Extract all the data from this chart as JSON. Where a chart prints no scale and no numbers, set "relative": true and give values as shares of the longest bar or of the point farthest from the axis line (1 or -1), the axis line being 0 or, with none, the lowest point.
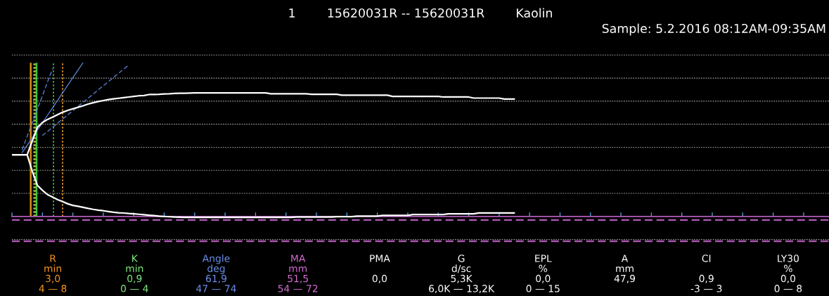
{
  "chart_data": [
    {
      "type": "line",
      "title": "1        15620031R -- 15620031R        Kaolin",
      "subtitle": "Sample: 5.2.2016 08:12AM-09:35AM",
      "relative": true,
      "grid": "y",
      "tick_labels": false,
      "categories": [
        null,
        null,
        null,
        null,
        null,
        null,
        null,
        null,
        null,
        null,
        null,
        null,
        null,
        null,
        null,
        null,
        null,
        null,
        null,
        null,
        null,
        null,
        null,
        null,
        null,
        null,
        null,
        null,
        null,
        null,
        null,
        null,
        null,
        null,
        null,
        null,
        null,
        null,
        null,
        null,
        null,
        null,
        null,
        null,
        null,
        null,
        null,
        null,
        null,
        null,
        null,
        null,
        null,
        null,
        null,
        null,
        null,
        null,
        null,
        null,
        null,
        null,
        null,
        null,
        null,
        null,
        null,
        null,
        null,
        null,
        null,
        null,
        null,
        null,
        null,
        null,
        null,
        null,
        null,
        null,
        null,
        null,
        null,
        null,
        null,
        null,
        null,
        null,
        null,
        null,
        null,
        null,
        null,
        null,
        null,
        null,
        null,
        null,
        null,
        null,
        null,
        null,
        null,
        null,
        null,
        null,
        null,
        null,
        null,
        null,
        null,
        null,
        null,
        null,
        null,
        null,
        null,
        null,
        null,
        null,
        null,
        null,
        null,
        null,
        null,
        null,
        null,
        null,
        null,
        null,
        null,
        null,
        null,
        null,
        null,
        null,
        null,
        null,
        null,
        null,
        null,
        null,
        null,
        null,
        null,
        null,
        null,
        null,
        null,
        null,
        null,
        null,
        null,
        null,
        null,
        null,
        null,
        null,
        null,
        null,
        null,
        null
      ],
      "series": [
        {
          "color": "#ffffff",
          "line_style": "solid",
          "values": [
            0.401,
            0.401,
            0.401,
            0.401,
            0.49,
            0.579,
            0.611,
            0.631,
            0.647,
            0.662,
            0.678,
            0.69,
            0.7,
            0.71,
            0.72,
            0.731,
            0.74,
            0.748,
            0.754,
            0.76,
            0.765,
            0.769,
            0.773,
            0.777,
            0.781,
            0.785,
            0.787,
            0.793,
            0.794,
            0.795,
            0.797,
            0.798,
            0.8,
            0.801,
            0.802,
            0.803,
            0.804,
            0.804,
            0.804,
            0.804,
            0.804,
            0.804,
            0.804,
            0.804,
            0.804,
            0.804,
            0.804,
            0.804,
            0.804,
            0.804,
            0.804,
            0.798,
            0.798,
            0.798,
            0.798,
            0.798,
            0.798,
            0.798,
            0.798,
            0.795,
            0.795,
            0.795,
            0.795,
            0.795,
            0.795,
            0.789,
            0.789,
            0.789,
            0.789,
            0.789,
            0.789,
            0.789,
            0.789,
            0.789,
            0.789,
            0.781,
            0.781,
            0.781,
            0.781,
            0.781,
            0.781,
            0.781,
            0.781,
            0.781,
            0.781,
            0.777,
            0.777,
            0.777,
            0.777,
            0.777,
            0.777,
            0.77,
            0.77,
            0.77,
            0.77,
            0.77,
            0.77,
            0.764,
            0.764,
            0.764,
            null,
            null,
            null,
            null,
            null,
            null,
            null,
            null,
            null,
            null,
            null,
            null,
            null,
            null,
            null,
            null,
            null,
            null,
            null,
            null,
            null,
            null,
            null,
            null,
            null,
            null,
            null,
            null,
            null,
            null,
            null,
            null,
            null,
            null,
            null,
            null,
            null,
            null,
            null,
            null,
            null,
            null,
            null,
            null,
            null,
            null,
            null,
            null,
            null,
            null,
            null,
            null,
            null,
            null,
            null,
            null,
            null,
            null,
            null,
            null,
            null,
            null
          ]
        },
        {
          "color": "#ffffff",
          "line_style": "solid",
          "values": [
            0.401,
            0.401,
            0.401,
            0.401,
            0.295,
            0.203,
            0.17,
            0.142,
            0.126,
            0.109,
            0.096,
            0.082,
            0.072,
            0.066,
            0.059,
            0.052,
            0.046,
            0.041,
            0.037,
            0.032,
            0.027,
            0.024,
            0.022,
            0.019,
            0.017,
            0.014,
            0.011,
            0.008,
            0.005,
            0.002,
            0.0,
            -0.002,
            -0.004,
            -0.005,
            -0.006,
            -0.006,
            -0.006,
            -0.006,
            -0.006,
            -0.006,
            -0.006,
            -0.006,
            -0.006,
            -0.006,
            -0.006,
            -0.006,
            -0.006,
            -0.006,
            -0.006,
            -0.006,
            -0.006,
            -0.006,
            -0.006,
            -0.006,
            -0.006,
            -0.006,
            -0.004,
            -0.004,
            -0.004,
            -0.004,
            -0.004,
            -0.004,
            -0.004,
            -0.004,
            -0.001,
            -0.001,
            -0.001,
            -0.001,
            0.002,
            0.002,
            0.002,
            0.002,
            0.002,
            0.007,
            0.007,
            0.007,
            0.007,
            0.007,
            0.007,
            0.012,
            0.012,
            0.012,
            0.012,
            0.012,
            0.012,
            0.012,
            0.017,
            0.017,
            0.017,
            0.017,
            0.017,
            0.017,
            0.023,
            0.023,
            0.023,
            0.023,
            0.023,
            0.023,
            0.023,
            0.023,
            null,
            null,
            null,
            null,
            null,
            null,
            null,
            null,
            null,
            null,
            null,
            null,
            null,
            null,
            null,
            null,
            null,
            null,
            null,
            null,
            null,
            null,
            null,
            null,
            null,
            null,
            null,
            null,
            null,
            null,
            null,
            null,
            null,
            null,
            null,
            null,
            null,
            null,
            null,
            null,
            null,
            null,
            null,
            null,
            null,
            null,
            null,
            null,
            null,
            null,
            null,
            null,
            null,
            null,
            null,
            null,
            null,
            null,
            null,
            null,
            null,
            null
          ]
        },
        {
          "color": "#5f86d8",
          "line_style": "dashed",
          "values": [
            null,
            null,
            0.433,
            0.522,
            0.609,
            0.698,
            0.785,
            0.874,
            0.961,
            null,
            null,
            null,
            null,
            null,
            null,
            null,
            null,
            null,
            null,
            null,
            null,
            null,
            null,
            null,
            null,
            null,
            null,
            null,
            null,
            null,
            null,
            null,
            null,
            null,
            null,
            null,
            null,
            null,
            null,
            null,
            null,
            null,
            null,
            null,
            null,
            null,
            null,
            null,
            null,
            null,
            null,
            null,
            null,
            null,
            null,
            null,
            null,
            null,
            null,
            null,
            null,
            null,
            null,
            null,
            null,
            null,
            null,
            null,
            null,
            null,
            null,
            null,
            null,
            null,
            null,
            null,
            null,
            null,
            null,
            null,
            null,
            null,
            null,
            null,
            null,
            null,
            null,
            null,
            null,
            null,
            null,
            null,
            null,
            null,
            null,
            null,
            null,
            null,
            null,
            null,
            null,
            null,
            null,
            null,
            null,
            null,
            null,
            null,
            null,
            null,
            null,
            null,
            null,
            null,
            null,
            null,
            null,
            null,
            null,
            null,
            null,
            null,
            null,
            null,
            null,
            null,
            null,
            null,
            null,
            null,
            null,
            null,
            null,
            null,
            null,
            null,
            null,
            null,
            null,
            null,
            null,
            null,
            null,
            null,
            null,
            null,
            null,
            null,
            null,
            null,
            null,
            null,
            null,
            null,
            null,
            null,
            null,
            null,
            null,
            null,
            null,
            null
          ]
        },
        {
          "color": "#5f86d8",
          "line_style": "solid",
          "values": [
            null,
            null,
            0.415,
            0.463,
            0.512,
            0.561,
            0.609,
            0.658,
            0.707,
            0.756,
            0.805,
            0.854,
            0.903,
            0.951,
            1.0,
            null,
            null,
            null,
            null,
            null,
            null,
            null,
            null,
            null,
            null,
            null,
            null,
            null,
            null,
            null,
            null,
            null,
            null,
            null,
            null,
            null,
            null,
            null,
            null,
            null,
            null,
            null,
            null,
            null,
            null,
            null,
            null,
            null,
            null,
            null,
            null,
            null,
            null,
            null,
            null,
            null,
            null,
            null,
            null,
            null,
            null,
            null,
            null,
            null,
            null,
            null,
            null,
            null,
            null,
            null,
            null,
            null,
            null,
            null,
            null,
            null,
            null,
            null,
            null,
            null,
            null,
            null,
            null,
            null,
            null,
            null,
            null,
            null,
            null,
            null,
            null,
            null,
            null,
            null,
            null,
            null,
            null,
            null,
            null,
            null,
            null,
            null,
            null,
            null,
            null,
            null,
            null,
            null,
            null,
            null,
            null,
            null,
            null,
            null,
            null,
            null,
            null,
            null,
            null,
            null,
            null,
            null,
            null,
            null,
            null,
            null,
            null,
            null,
            null,
            null,
            null,
            null,
            null,
            null,
            null,
            null,
            null,
            null,
            null,
            null,
            null,
            null,
            null,
            null,
            null,
            null,
            null,
            null,
            null,
            null,
            null,
            null,
            null,
            null,
            null,
            null,
            null,
            null,
            null,
            null,
            null,
            null
          ]
        },
        {
          "color": "#5f86d8",
          "line_style": "dashed",
          "values": [
            null,
            null,
            null,
            null,
            null,
            null,
            0.526,
            0.553,
            0.58,
            0.607,
            0.634,
            0.661,
            0.688,
            0.715,
            0.742,
            0.769,
            0.796,
            0.823,
            0.85,
            0.877,
            0.904,
            0.931,
            0.958,
            0.985,
            null,
            null,
            null,
            null,
            null,
            null,
            null,
            null,
            null,
            null,
            null,
            null,
            null,
            null,
            null,
            null,
            null,
            null,
            null,
            null,
            null,
            null,
            null,
            null,
            null,
            null,
            null,
            null,
            null,
            null,
            null,
            null,
            null,
            null,
            null,
            null,
            null,
            null,
            null,
            null,
            null,
            null,
            null,
            null,
            null,
            null,
            null,
            null,
            null,
            null,
            null,
            null,
            null,
            null,
            null,
            null,
            null,
            null,
            null,
            null,
            null,
            null,
            null,
            null,
            null,
            null,
            null,
            null,
            null,
            null,
            null,
            null,
            null,
            null,
            null,
            null,
            null,
            null,
            null,
            null,
            null,
            null,
            null,
            null,
            null,
            null,
            null,
            null,
            null,
            null,
            null,
            null,
            null,
            null,
            null,
            null,
            null,
            null,
            null,
            null,
            null,
            null,
            null,
            null,
            null,
            null,
            null,
            null,
            null,
            null,
            null,
            null,
            null,
            null,
            null,
            null,
            null,
            null,
            null,
            null,
            null,
            null,
            null,
            null,
            null,
            null,
            null,
            null,
            null,
            null,
            null,
            null,
            null,
            null,
            null,
            null,
            null,
            null
          ]
        }
      ],
      "ref_lines": [
        {
          "axis": "y",
          "value": -0.023,
          "color": "#b05ab8",
          "line_style": "dashed"
        },
        {
          "axis": "y",
          "value": -0.162,
          "color": "#b05ab8",
          "line_style": "dashed"
        }
      ]
    },
    {
      "type": "other",
      "annotations": [
        "R\nmin\n3,0\n4 — 8",
        "K\nmin\n0,9\n0 — 4",
        "Angle\ndeg\n61,9\n47 — 74",
        "MA\nmm\n51,5\n54 — 72",
        "PMA\n\n0,0",
        "G\nd/sc\n5,3K\n6,0K — 13,2K",
        "EPL\n%\n0,0\n0 — 15",
        "A\nmm\n47,9",
        "CI\n\n0,9\n-3 — 3",
        "LY30\n%\n0,0\n0 — 8"
      ],
      "colors": [
        "#f7941d",
        "#7ded7d",
        "#6a8fe8",
        "#d36ad3",
        "#ffffff",
        "#ffffff",
        "#ffffff",
        "#ffffff",
        "#ffffff",
        "#ffffff"
      ]
    }
  ]
}
